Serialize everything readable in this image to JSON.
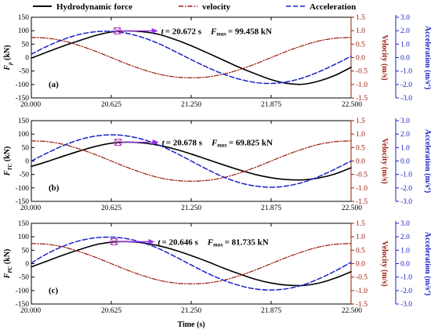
{
  "colors": {
    "force": "#000000",
    "velocity": "#9a1b0b",
    "acceleration": "#1a22c8",
    "left_axis": "#000000",
    "mid_axis": "#9a1b0b",
    "right_axis": "#1a22c8",
    "marker": "#b23fbf",
    "arrow": "#9b30e8"
  },
  "legend": {
    "force": "Hydrodynamic force",
    "velocity": "velocity",
    "acceleration": "Acceleration"
  },
  "x_axis_title": "Time (s)",
  "chart_data": [
    {
      "type": "line",
      "panel_label": "(a)",
      "ylabel_main": "F",
      "ylabel_sub": "p",
      "ylabel_unit": " (kN)",
      "x": [
        20.0,
        20.125,
        20.25,
        20.375,
        20.5,
        20.625,
        20.75,
        20.875,
        21.0,
        21.125,
        21.25,
        21.375,
        21.5,
        21.625,
        21.75,
        21.875,
        22.0,
        22.125,
        22.25,
        22.375,
        22.5
      ],
      "xlim": [
        20.0,
        22.5
      ],
      "xticks": [
        "20.000",
        "20.625",
        "21.250",
        "21.875",
        "22.500"
      ],
      "ylim_left": [
        -150,
        150
      ],
      "yticks_left": [
        "-150",
        "-100",
        "-50",
        "0",
        "50",
        "100",
        "150"
      ],
      "ylim_velocity": [
        -1.5,
        1.5
      ],
      "yticks_velocity": [
        "-1.5",
        "-1.0",
        "-0.5",
        "0.0",
        "0.5",
        "1.0",
        "1.5"
      ],
      "ylim_acceleration": [
        -3.0,
        3.0
      ],
      "yticks_acceleration": [
        "-3.0",
        "-2.0",
        "-1.0",
        "0.0",
        "1.0",
        "2.0",
        "3.0"
      ],
      "series": [
        {
          "name": "Hydrodynamic force",
          "values": [
            -2,
            21,
            43,
            63,
            82,
            95,
            99,
            96,
            86,
            67,
            44,
            18,
            -9,
            -36,
            -60,
            -82,
            -96,
            -99,
            -87,
            -66,
            -36
          ]
        },
        {
          "name": "velocity",
          "values": [
            0.75,
            0.72,
            0.62,
            0.45,
            0.24,
            0.0,
            -0.24,
            -0.45,
            -0.62,
            -0.72,
            -0.75,
            -0.72,
            -0.62,
            -0.45,
            -0.24,
            0.0,
            0.24,
            0.45,
            0.62,
            0.72,
            0.75
          ]
        },
        {
          "name": "Acceleration",
          "values": [
            0.25,
            0.85,
            1.35,
            1.72,
            1.92,
            1.95,
            1.8,
            1.48,
            1.02,
            0.45,
            -0.15,
            -0.72,
            -1.22,
            -1.6,
            -1.85,
            -1.92,
            -1.8,
            -1.5,
            -1.05,
            -0.5,
            0.1
          ]
        }
      ],
      "peak": {
        "t": 20.672,
        "F": 99.458
      },
      "annotation": {
        "t_text": "= 20.672 s",
        "f_text": "= 99.458 kN"
      }
    },
    {
      "type": "line",
      "panel_label": "(b)",
      "ylabel_main": "F",
      "ylabel_sub": "TC",
      "ylabel_unit": " (kN)",
      "x": [
        20.0,
        20.125,
        20.25,
        20.375,
        20.5,
        20.625,
        20.75,
        20.875,
        21.0,
        21.125,
        21.25,
        21.375,
        21.5,
        21.625,
        21.75,
        21.875,
        22.0,
        22.125,
        22.25,
        22.375,
        22.5
      ],
      "xlim": [
        20.0,
        22.5
      ],
      "xticks": [
        "20.000",
        "20.625",
        "21.250",
        "21.875",
        "22.500"
      ],
      "ylim_left": [
        -150,
        150
      ],
      "yticks_left": [
        "-150",
        "-100",
        "-50",
        "0",
        "50",
        "100",
        "150"
      ],
      "ylim_velocity": [
        -1.5,
        1.5
      ],
      "yticks_velocity": [
        "-1.5",
        "-1.0",
        "-0.5",
        "0.0",
        "0.5",
        "1.0",
        "1.5"
      ],
      "ylim_acceleration": [
        -3.0,
        3.0
      ],
      "yticks_acceleration": [
        "-3.0",
        "-2.0",
        "-1.0",
        "0.0",
        "1.0",
        "2.0",
        "3.0"
      ],
      "series": [
        {
          "name": "Hydrodynamic force",
          "values": [
            -20,
            -2,
            18,
            37,
            54,
            66,
            70,
            67,
            58,
            44,
            26,
            6,
            -14,
            -33,
            -50,
            -62,
            -69,
            -70,
            -63,
            -48,
            -25
          ]
        },
        {
          "name": "velocity",
          "values": [
            0.75,
            0.72,
            0.62,
            0.45,
            0.24,
            0.0,
            -0.24,
            -0.45,
            -0.62,
            -0.72,
            -0.75,
            -0.72,
            -0.62,
            -0.45,
            -0.24,
            0.0,
            0.24,
            0.45,
            0.62,
            0.72,
            0.75
          ]
        },
        {
          "name": "Acceleration",
          "values": [
            0.0,
            0.6,
            1.15,
            1.58,
            1.85,
            1.95,
            1.86,
            1.6,
            1.18,
            0.62,
            0.0,
            -0.62,
            -1.18,
            -1.6,
            -1.86,
            -1.95,
            -1.85,
            -1.58,
            -1.15,
            -0.6,
            0.0
          ]
        }
      ],
      "peak": {
        "t": 20.678,
        "F": 69.825
      },
      "annotation": {
        "t_text": "= 20.678 s",
        "f_text": "= 69.825 kN"
      }
    },
    {
      "type": "line",
      "panel_label": "(c)",
      "ylabel_main": "F",
      "ylabel_sub": "PC",
      "ylabel_unit": " (kN)",
      "x": [
        20.0,
        20.125,
        20.25,
        20.375,
        20.5,
        20.625,
        20.75,
        20.875,
        21.0,
        21.125,
        21.25,
        21.375,
        21.5,
        21.625,
        21.75,
        21.875,
        22.0,
        22.125,
        22.25,
        22.375,
        22.5
      ],
      "xlim": [
        20.0,
        22.5
      ],
      "xticks": [
        "20.000",
        "20.625",
        "21.250",
        "21.875",
        "22.500"
      ],
      "ylim_left": [
        -150,
        150
      ],
      "yticks_left": [
        "-150",
        "-100",
        "-50",
        "0",
        "50",
        "100",
        "150"
      ],
      "ylim_velocity": [
        -1.5,
        1.5
      ],
      "yticks_velocity": [
        "-1.5",
        "-1.0",
        "-0.5",
        "0.0",
        "0.5",
        "1.0",
        "1.5"
      ],
      "ylim_acceleration": [
        -3.0,
        3.0
      ],
      "yticks_acceleration": [
        "-3.0",
        "-2.0",
        "-1.0",
        "0.0",
        "1.0",
        "2.0",
        "3.0"
      ],
      "series": [
        {
          "name": "Hydrodynamic force",
          "values": [
            -12,
            10,
            32,
            52,
            70,
            80,
            82,
            77,
            66,
            50,
            30,
            8,
            -16,
            -38,
            -58,
            -72,
            -80,
            -81,
            -72,
            -54,
            -30
          ]
        },
        {
          "name": "velocity",
          "values": [
            0.75,
            0.72,
            0.62,
            0.45,
            0.24,
            0.0,
            -0.24,
            -0.45,
            -0.62,
            -0.72,
            -0.75,
            -0.72,
            -0.62,
            -0.45,
            -0.24,
            0.0,
            0.24,
            0.45,
            0.62,
            0.72,
            0.75
          ]
        },
        {
          "name": "Acceleration",
          "values": [
            0.05,
            0.75,
            1.3,
            1.7,
            1.92,
            1.97,
            1.85,
            1.55,
            1.1,
            0.52,
            -0.1,
            -0.7,
            -1.22,
            -1.62,
            -1.88,
            -1.96,
            -1.86,
            -1.58,
            -1.12,
            -0.55,
            0.1
          ]
        }
      ],
      "peak": {
        "t": 20.646,
        "F": 81.735
      },
      "annotation": {
        "t_text": "= 20.646 s",
        "f_text": "= 81.735 kN"
      }
    }
  ],
  "right_axis_titles": {
    "velocity": "Velocity (m/s)",
    "acceleration_main": "Acceleration (m/s",
    "acceleration_sup": "2",
    "acceleration_end": ")"
  },
  "annotation_letters": {
    "t": "t",
    "f": "F",
    "f_sub": "max"
  }
}
